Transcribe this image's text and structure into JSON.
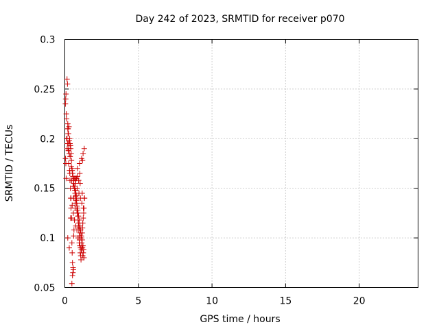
{
  "chart_data": {
    "type": "scatter",
    "title": "Day 242 of 2023, SRMTID for receiver p070",
    "xlabel": "GPS time / hours",
    "ylabel": "SRMTID / TECUs",
    "xlim": [
      0,
      24
    ],
    "ylim": [
      0.05,
      0.3
    ],
    "xticks": [
      0,
      5,
      10,
      15,
      20
    ],
    "xtick_labels": [
      "0",
      "5",
      "10",
      "15",
      "20"
    ],
    "yticks": [
      0.05,
      0.1,
      0.15,
      0.2,
      0.25,
      0.3
    ],
    "ytick_labels": [
      "0.05",
      "0.1",
      "0.15",
      "0.2",
      "0.25",
      "0.3"
    ],
    "grid": true,
    "marker": "plus",
    "color": "#cc0000",
    "series": [
      {
        "name": "p070",
        "x": [
          0.04,
          0.06,
          0.08,
          0.1,
          0.05,
          0.07,
          0.09,
          0.12,
          0.15,
          0.18,
          0.2,
          0.22,
          0.25,
          0.28,
          0.3,
          0.32,
          0.35,
          0.38,
          0.4,
          0.42,
          0.45,
          0.48,
          0.5,
          0.52,
          0.55,
          0.58,
          0.6,
          0.62,
          0.65,
          0.68,
          0.7,
          0.72,
          0.75,
          0.78,
          0.8,
          0.82,
          0.85,
          0.88,
          0.9,
          0.92,
          0.95,
          0.98,
          1.0,
          1.02,
          1.05,
          1.08,
          1.1,
          1.12,
          1.15,
          1.18,
          1.2,
          1.22,
          1.25,
          1.28,
          1.3,
          1.33,
          0.15,
          0.2,
          0.25,
          0.3,
          0.35,
          0.4,
          0.45,
          0.5,
          0.55,
          0.6,
          0.65,
          0.7,
          0.75,
          0.8,
          0.85,
          0.9,
          0.95,
          1.0,
          1.05,
          1.1,
          1.15,
          1.2,
          1.25,
          1.3,
          0.22,
          0.28,
          0.33,
          0.38,
          0.43,
          0.48,
          0.53,
          0.58,
          0.63,
          0.68,
          0.73,
          0.78,
          0.83,
          0.88,
          0.93,
          0.98,
          1.03,
          1.08,
          1.13,
          1.18,
          1.23,
          1.28,
          0.18,
          0.24,
          0.36,
          0.44,
          0.52,
          0.62,
          0.72,
          0.84,
          0.96,
          1.06,
          1.16,
          1.26,
          0.12,
          0.16,
          0.26,
          0.34,
          0.46,
          0.56,
          0.66,
          0.76,
          0.86,
          0.94,
          1.04,
          1.14,
          1.24,
          1.32,
          0.42,
          0.5,
          0.58,
          0.66,
          0.74,
          0.82,
          0.9,
          0.98,
          1.06,
          1.14,
          1.22,
          1.3,
          0.2,
          0.3,
          0.4,
          0.6,
          0.7,
          0.8,
          1.0,
          1.2,
          0.48,
          0.52,
          0.56,
          0.7,
          0.86,
          1.02,
          1.18,
          1.34
        ],
        "y": [
          0.235,
          0.24,
          0.245,
          0.225,
          0.18,
          0.175,
          0.16,
          0.22,
          0.26,
          0.255,
          0.21,
          0.205,
          0.195,
          0.19,
          0.185,
          0.168,
          0.158,
          0.15,
          0.14,
          0.13,
          0.12,
          0.095,
          0.085,
          0.075,
          0.065,
          0.068,
          0.102,
          0.108,
          0.118,
          0.16,
          0.158,
          0.155,
          0.148,
          0.143,
          0.138,
          0.128,
          0.125,
          0.122,
          0.118,
          0.112,
          0.108,
          0.102,
          0.098,
          0.092,
          0.085,
          0.082,
          0.078,
          0.088,
          0.092,
          0.105,
          0.11,
          0.115,
          0.12,
          0.125,
          0.13,
          0.14,
          0.2,
          0.215,
          0.205,
          0.198,
          0.195,
          0.19,
          0.178,
          0.168,
          0.162,
          0.155,
          0.15,
          0.145,
          0.14,
          0.135,
          0.13,
          0.125,
          0.115,
          0.11,
          0.105,
          0.1,
          0.095,
          0.09,
          0.085,
          0.08,
          0.21,
          0.212,
          0.2,
          0.193,
          0.185,
          0.17,
          0.165,
          0.158,
          0.152,
          0.148,
          0.142,
          0.138,
          0.132,
          0.128,
          0.122,
          0.118,
          0.112,
          0.108,
          0.102,
          0.098,
          0.092,
          0.088,
          0.195,
          0.188,
          0.182,
          0.172,
          0.165,
          0.16,
          0.155,
          0.15,
          0.145,
          0.14,
          0.135,
          0.13,
          0.2,
          0.19,
          0.175,
          0.165,
          0.158,
          0.152,
          0.15,
          0.16,
          0.162,
          0.158,
          0.155,
          0.18,
          0.185,
          0.19,
          0.14,
          0.133,
          0.125,
          0.118,
          0.112,
          0.108,
          0.1,
          0.095,
          0.09,
          0.088,
          0.082,
          0.08,
          0.1,
          0.09,
          0.12,
          0.14,
          0.13,
          0.16,
          0.175,
          0.178,
          0.054,
          0.062,
          0.07,
          0.135,
          0.17,
          0.165,
          0.145,
          0.14
        ]
      }
    ]
  }
}
